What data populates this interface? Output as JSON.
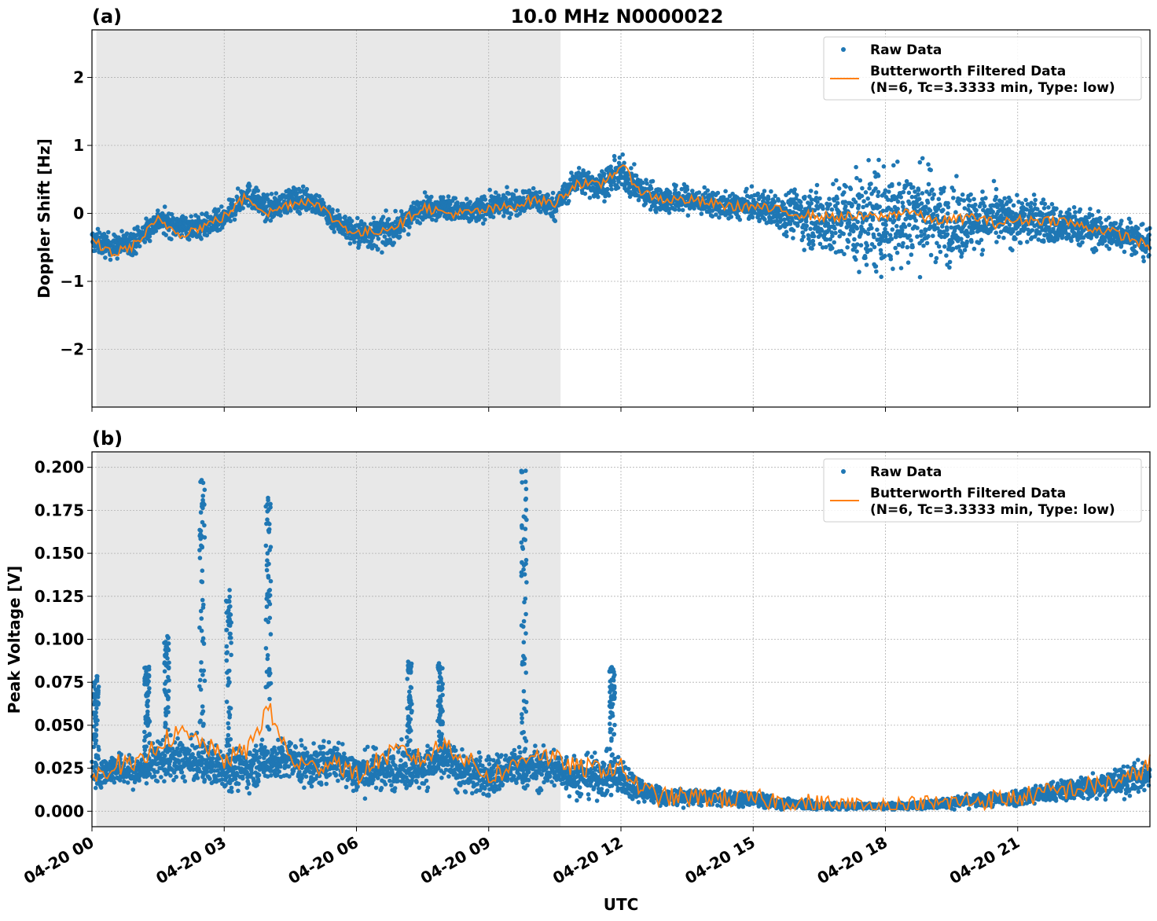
{
  "figure_title": "10.0 MHz N0000022",
  "shared_xlabel": "UTC",
  "colors": {
    "raw": "#1f77b4",
    "filtered": "#ff7f0e",
    "night_shade": "#e8e8e8",
    "grid": "#b0b0b0"
  },
  "legend": {
    "raw_label": "Raw Data",
    "filtered_label_line1": "Butterworth Filtered Data",
    "filtered_label_line2": "(N=6, Tc=3.3333 min, Type: low)"
  },
  "chart_data": [
    {
      "panel_label": "(a)",
      "type": "scatter",
      "ylabel": "Doppler Shift [Hz]",
      "xlim_hours": [
        0,
        24
      ],
      "ylim": [
        -2.85,
        2.7
      ],
      "yticks": [
        2,
        1,
        0,
        -1,
        -2
      ],
      "ytick_labels": [
        "2",
        "1",
        "0",
        "−1",
        "−2"
      ],
      "shaded_interval_hours": [
        0.1,
        10.63
      ],
      "grid": true,
      "legend_position": "top-right",
      "series": [
        {
          "name": "Raw Data",
          "kind": "points",
          "x": [
            0,
            0.5,
            1,
            1.5,
            2,
            2.5,
            3,
            3.5,
            4,
            4.5,
            5,
            5.5,
            6,
            6.5,
            7,
            7.5,
            8,
            8.5,
            9,
            9.5,
            10,
            10.5,
            11,
            11.5,
            12,
            12.5,
            13,
            13.5,
            14,
            14.5,
            15,
            15.5,
            16,
            16.5,
            17,
            17.5,
            18,
            18.5,
            19,
            19.5,
            20,
            20.5,
            21,
            21.5,
            22,
            22.5,
            23,
            23.5,
            24
          ],
          "y": [
            -0.4,
            -0.5,
            -0.4,
            -0.1,
            -0.2,
            -0.2,
            -0.1,
            0.3,
            0.05,
            0.2,
            0.2,
            -0.1,
            -0.3,
            -0.3,
            -0.2,
            0.1,
            0.1,
            0.0,
            0.1,
            0.15,
            0.2,
            0.1,
            0.5,
            0.4,
            0.6,
            0.3,
            0.2,
            0.2,
            0.15,
            0.1,
            0.1,
            0.05,
            0.0,
            -0.1,
            -0.1,
            -0.1,
            -0.1,
            0.0,
            0.0,
            -0.2,
            -0.1,
            -0.1,
            -0.1,
            -0.1,
            -0.2,
            -0.2,
            -0.3,
            -0.3,
            -0.5
          ],
          "spread_hz": [
            0.3,
            0.3,
            0.3,
            0.3,
            0.3,
            0.3,
            0.3,
            0.3,
            0.3,
            0.3,
            0.3,
            0.3,
            0.35,
            0.4,
            0.3,
            0.3,
            0.3,
            0.3,
            0.3,
            0.3,
            0.3,
            0.3,
            0.3,
            0.35,
            0.4,
            0.35,
            0.35,
            0.35,
            0.3,
            0.3,
            0.35,
            0.45,
            0.6,
            0.8,
            1.0,
            1.2,
            1.4,
            1.3,
            1.1,
            0.9,
            0.75,
            0.65,
            0.6,
            0.55,
            0.5,
            0.45,
            0.45,
            0.4,
            0.4
          ]
        },
        {
          "name": "Butterworth Filtered Data (N=6, Tc=3.3333 min, Type: low)",
          "kind": "line",
          "x": [
            0,
            0.5,
            1,
            1.5,
            2,
            2.5,
            3,
            3.5,
            4,
            4.5,
            5,
            5.5,
            6,
            6.5,
            7,
            7.5,
            8,
            8.5,
            9,
            9.5,
            10,
            10.5,
            11,
            11.5,
            12,
            12.5,
            13,
            13.5,
            14,
            14.5,
            15,
            15.5,
            16,
            16.5,
            17,
            17.5,
            18,
            18.5,
            19,
            19.5,
            20,
            20.5,
            21,
            21.5,
            22,
            22.5,
            23,
            23.5,
            24
          ],
          "y": [
            -0.4,
            -0.6,
            -0.45,
            -0.1,
            -0.3,
            -0.2,
            -0.05,
            0.25,
            0.0,
            0.15,
            0.2,
            -0.1,
            -0.3,
            -0.25,
            -0.15,
            0.1,
            0.0,
            0.0,
            0.05,
            0.1,
            0.2,
            0.15,
            0.45,
            0.4,
            0.7,
            0.3,
            0.2,
            0.2,
            0.15,
            0.1,
            0.1,
            0.05,
            0.0,
            -0.05,
            -0.05,
            -0.05,
            -0.05,
            0.05,
            -0.1,
            -0.1,
            -0.05,
            -0.15,
            -0.1,
            -0.1,
            -0.1,
            -0.2,
            -0.25,
            -0.35,
            -0.5
          ]
        }
      ]
    },
    {
      "panel_label": "(b)",
      "type": "scatter",
      "ylabel": "Peak Voltage [V]",
      "xlim_hours": [
        0,
        24
      ],
      "ylim": [
        -0.009,
        0.209
      ],
      "yticks": [
        0.2,
        0.175,
        0.15,
        0.125,
        0.1,
        0.075,
        0.05,
        0.025,
        0.0
      ],
      "ytick_labels": [
        "0.200",
        "0.175",
        "0.150",
        "0.125",
        "0.100",
        "0.075",
        "0.050",
        "0.025",
        "0.000"
      ],
      "shaded_interval_hours": [
        0.1,
        10.63
      ],
      "grid": true,
      "legend_position": "top-right",
      "series": [
        {
          "name": "Raw Data",
          "kind": "points",
          "x": [
            0,
            0.5,
            1,
            1.5,
            2,
            2.5,
            3,
            3.5,
            4,
            4.5,
            5,
            5.5,
            6,
            6.5,
            7,
            7.5,
            8,
            8.5,
            9,
            9.5,
            10,
            10.5,
            11,
            11.5,
            12,
            12.5,
            13,
            13.5,
            14,
            14.5,
            15,
            15.5,
            16,
            16.5,
            17,
            17.5,
            18,
            18.5,
            19,
            19.5,
            20,
            20.5,
            21,
            21.5,
            22,
            22.5,
            23,
            23.5,
            24
          ],
          "y": [
            0.022,
            0.025,
            0.022,
            0.03,
            0.03,
            0.028,
            0.025,
            0.025,
            0.03,
            0.03,
            0.025,
            0.03,
            0.022,
            0.025,
            0.025,
            0.025,
            0.03,
            0.022,
            0.02,
            0.025,
            0.025,
            0.025,
            0.02,
            0.02,
            0.02,
            0.012,
            0.008,
            0.008,
            0.008,
            0.007,
            0.007,
            0.005,
            0.004,
            0.003,
            0.003,
            0.003,
            0.003,
            0.003,
            0.004,
            0.005,
            0.006,
            0.007,
            0.008,
            0.01,
            0.012,
            0.014,
            0.016,
            0.018,
            0.022
          ],
          "spread_v": [
            0.015,
            0.015,
            0.015,
            0.02,
            0.02,
            0.02,
            0.02,
            0.02,
            0.02,
            0.02,
            0.02,
            0.02,
            0.02,
            0.02,
            0.02,
            0.02,
            0.02,
            0.02,
            0.02,
            0.02,
            0.02,
            0.02,
            0.02,
            0.02,
            0.02,
            0.01,
            0.008,
            0.008,
            0.007,
            0.007,
            0.007,
            0.006,
            0.005,
            0.004,
            0.003,
            0.003,
            0.003,
            0.003,
            0.004,
            0.005,
            0.006,
            0.007,
            0.008,
            0.009,
            0.01,
            0.012,
            0.013,
            0.014,
            0.016
          ]
        },
        {
          "name": "Butterworth Filtered Data (N=6, Tc=3.3333 min, Type: low)",
          "kind": "line",
          "x": [
            0,
            0.5,
            1,
            1.5,
            2,
            2.5,
            3,
            3.5,
            4,
            4.5,
            5,
            5.5,
            6,
            6.5,
            7,
            7.5,
            8,
            8.5,
            9,
            9.5,
            10,
            10.5,
            11,
            11.5,
            12,
            12.5,
            13,
            13.5,
            14,
            14.5,
            15,
            15.5,
            16,
            16.5,
            17,
            17.5,
            18,
            18.5,
            19,
            19.5,
            20,
            20.5,
            21,
            21.5,
            22,
            22.5,
            23,
            23.5,
            24
          ],
          "y": [
            0.018,
            0.028,
            0.025,
            0.04,
            0.045,
            0.04,
            0.03,
            0.035,
            0.06,
            0.03,
            0.025,
            0.03,
            0.02,
            0.03,
            0.035,
            0.03,
            0.04,
            0.03,
            0.02,
            0.025,
            0.035,
            0.03,
            0.025,
            0.025,
            0.025,
            0.012,
            0.008,
            0.008,
            0.008,
            0.007,
            0.007,
            0.006,
            0.005,
            0.004,
            0.003,
            0.003,
            0.003,
            0.003,
            0.004,
            0.005,
            0.006,
            0.007,
            0.008,
            0.01,
            0.012,
            0.014,
            0.016,
            0.018,
            0.028
          ]
        }
      ],
      "spikes": [
        {
          "x": 0.1,
          "peak": 0.081
        },
        {
          "x": 1.25,
          "peak": 0.085
        },
        {
          "x": 1.7,
          "peak": 0.104
        },
        {
          "x": 2.5,
          "peak": 0.196
        },
        {
          "x": 3.1,
          "peak": 0.129
        },
        {
          "x": 4.0,
          "peak": 0.183
        },
        {
          "x": 7.2,
          "peak": 0.087
        },
        {
          "x": 7.9,
          "peak": 0.088
        },
        {
          "x": 9.8,
          "peak": 0.199
        },
        {
          "x": 11.8,
          "peak": 0.084
        }
      ]
    }
  ],
  "x_tick_labels": [
    "04-20 00",
    "04-20 03",
    "04-20 06",
    "04-20 09",
    "04-20 12",
    "04-20 15",
    "04-20 18",
    "04-20 21"
  ],
  "x_tick_hours": [
    0,
    3,
    6,
    9,
    12,
    15,
    18,
    21
  ]
}
